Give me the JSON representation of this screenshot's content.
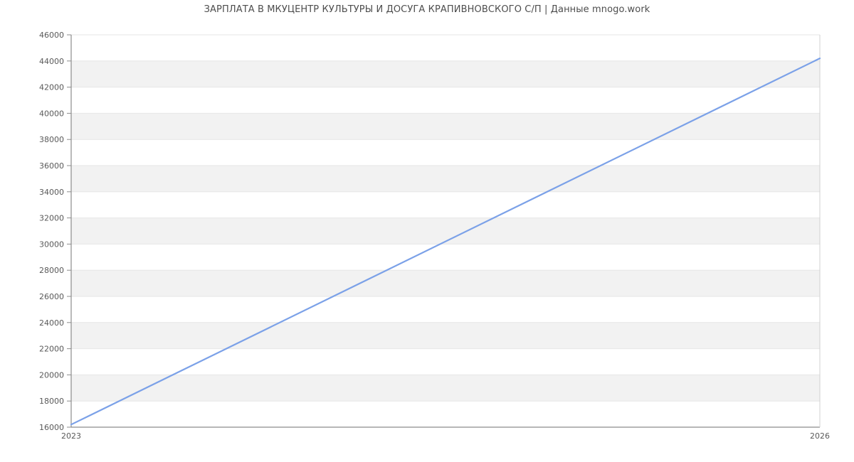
{
  "chart_data": {
    "type": "line",
    "title": "ЗАРПЛАТА В МКУЦЕНТР КУЛЬТУРЫ И ДОСУГА КРАПИВНОВСКОГО С/П | Данные mnogo.work",
    "x": [
      2023,
      2026
    ],
    "series": [
      {
        "values": [
          16200,
          44200
        ]
      }
    ],
    "xlim": [
      2023,
      2026
    ],
    "ylim": [
      16000,
      46000
    ],
    "y_ticks": [
      16000,
      18000,
      20000,
      22000,
      24000,
      26000,
      28000,
      30000,
      32000,
      34000,
      36000,
      38000,
      40000,
      42000,
      44000,
      46000
    ],
    "x_tick_labels": [
      "2023",
      "2026"
    ],
    "x_tick_positions": [
      2023,
      2026
    ],
    "legend_position": "none",
    "grid": "horizontal-lines-with-alternating-bands",
    "colors": {
      "line": "#7ba1e8",
      "band": "#f2f2f2",
      "grid": "#e6e6e6",
      "axis": "#8c8c8c",
      "right_border": "#d0d0d0",
      "tick_text": "#595959",
      "title_text": "#4d4d4d"
    }
  }
}
